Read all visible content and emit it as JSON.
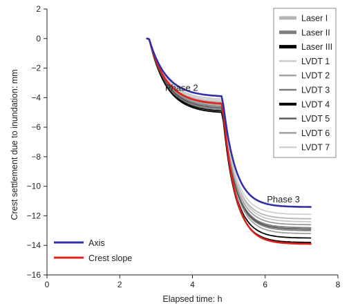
{
  "chart_data": {
    "type": "line",
    "title": "",
    "xlabel": "Elapsed time: h",
    "ylabel": "Crest settlement due to inundation: mm",
    "xlim": [
      0,
      8
    ],
    "ylim": [
      -16,
      2
    ],
    "x_ticks": [
      0,
      2,
      4,
      6,
      8
    ],
    "y_ticks": [
      2,
      0,
      -2,
      -4,
      -6,
      -8,
      -10,
      -12,
      -14,
      -16
    ],
    "grid": false,
    "legend_top_right": [
      {
        "name": "Laser I",
        "color": "#b4b4b4"
      },
      {
        "name": "Laser II",
        "color": "#7e7e7e"
      },
      {
        "name": "Laser III",
        "color": "#000000"
      },
      {
        "name": "LVDT 1",
        "color": "#c8c8c8"
      },
      {
        "name": "LVDT 2",
        "color": "#a0a0a0"
      },
      {
        "name": "LVDT 3",
        "color": "#7a7a7a"
      },
      {
        "name": "LVDT 4",
        "color": "#000000"
      },
      {
        "name": "LVDT 5",
        "color": "#555555"
      },
      {
        "name": "LVDT 6",
        "color": "#9a9a9a"
      },
      {
        "name": "LVDT 7",
        "color": "#cfcfcf"
      }
    ],
    "legend_bottom_left": [
      {
        "name": "Axis",
        "color": "#2f2fa8"
      },
      {
        "name": "Crest slope",
        "color": "#e0201a"
      }
    ],
    "annotations": [
      {
        "text": "Phase 2",
        "x": 3.7,
        "y": -3.55
      },
      {
        "text": "Phase 3",
        "x": 6.5,
        "y": -11.1
      }
    ],
    "phase_points": {
      "start_time": 2.75,
      "phase2_end_time": 4.8,
      "end_time": 7.25
    },
    "series": [
      {
        "name": "Axis",
        "color": "#2f2fa8",
        "end_phase2": -3.9,
        "end_phase3": -11.4
      },
      {
        "name": "Crest slope",
        "color": "#e0201a",
        "end_phase2": -4.4,
        "end_phase3": -13.9
      },
      {
        "name": "Laser I",
        "color": "#b4b4b4",
        "end_phase2": -4.3,
        "end_phase3": -12.2
      },
      {
        "name": "Laser II",
        "color": "#7e7e7e",
        "end_phase2": -4.6,
        "end_phase3": -13.0
      },
      {
        "name": "Laser III",
        "color": "#000000",
        "end_phase2": -4.9,
        "end_phase3": -13.5
      },
      {
        "name": "LVDT 1",
        "color": "#c8c8c8",
        "end_phase2": -4.1,
        "end_phase3": -12.4
      },
      {
        "name": "LVDT 2",
        "color": "#a0a0a0",
        "end_phase2": -4.5,
        "end_phase3": -13.2
      },
      {
        "name": "LVDT 3",
        "color": "#7a7a7a",
        "end_phase2": -4.8,
        "end_phase3": -12.8
      },
      {
        "name": "LVDT 4",
        "color": "#000000",
        "end_phase2": -5.0,
        "end_phase3": -13.8
      },
      {
        "name": "LVDT 5",
        "color": "#555555",
        "end_phase2": -4.7,
        "end_phase3": -12.9
      },
      {
        "name": "LVDT 6",
        "color": "#9a9a9a",
        "end_phase2": -4.4,
        "end_phase3": -12.6
      },
      {
        "name": "LVDT 7",
        "color": "#cfcfcf",
        "end_phase2": -4.2,
        "end_phase3": -11.9
      }
    ]
  }
}
